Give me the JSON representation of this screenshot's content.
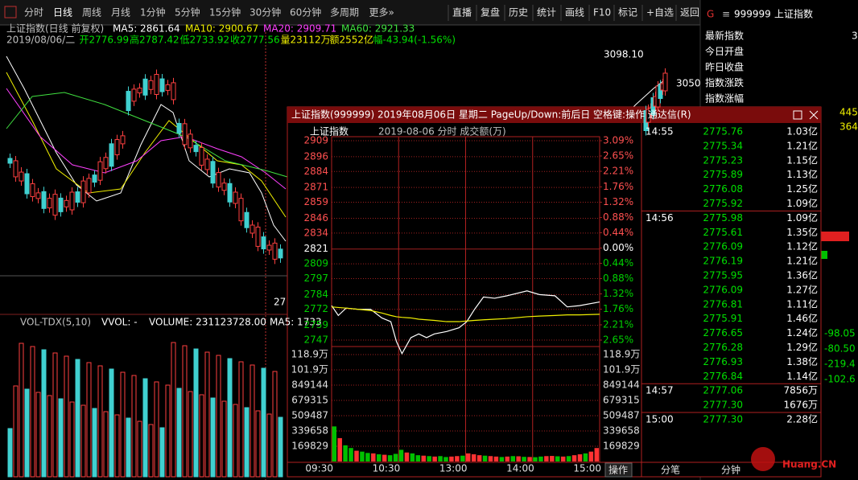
{
  "toolbar": {
    "left": [
      "分时",
      "日线",
      "周线",
      "月线",
      "1分钟",
      "5分钟",
      "15分钟",
      "30分钟",
      "60分钟",
      "多周期",
      "更多»"
    ],
    "right": [
      "直播",
      "复盘",
      "历史",
      "统计",
      "画线",
      "F10",
      "标记",
      "+自选",
      "返回"
    ]
  },
  "header": {
    "mark": "G",
    "menu": "≡",
    "code": "999999",
    "name": "上证指数"
  },
  "quote_panel": {
    "labels": [
      "最新指数",
      "今日开盘",
      "昨日收盘",
      "指数涨跌",
      "指数涨幅"
    ],
    "cut_values": [
      "3",
      "445",
      "364",
      "-98.05",
      "-80.50",
      "-219.4",
      "-102.6"
    ]
  },
  "daily": {
    "title": "上证指数(日线 前复权)",
    "ma": [
      {
        "text": "MA5: 2861.64",
        "color": "#ffffff"
      },
      {
        "text": "MA10: 2900.67",
        "color": "#f0f000"
      },
      {
        "text": "MA20: 2909.71",
        "color": "#ff40ff"
      },
      {
        "text": "MA60: 2921.33",
        "color": "#40e040"
      }
    ],
    "info": [
      {
        "text": "2019/08/06/二",
        "color": "#c0c0c0"
      },
      {
        "text": "开2776.99",
        "color": "#00e000"
      },
      {
        "text": "高2787.42",
        "color": "#00e000"
      },
      {
        "text": "低2733.92",
        "color": "#00e000"
      },
      {
        "text": "收2777.56",
        "color": "#00e000"
      },
      {
        "text": "量23112万",
        "color": "#f0f000"
      },
      {
        "text": "额2552亿",
        "color": "#f0f000"
      },
      {
        "text": "幅-43.94(-1.56%)",
        "color": "#00e000"
      }
    ],
    "labels": [
      "3098.10",
      "3050",
      "27"
    ]
  },
  "volume_header": [
    "VOL-TDX(5,10)",
    "VVOL: -",
    "VOLUME: 231123728.00",
    "MA5: 1733"
  ],
  "popup": {
    "title": "上证指数(999999) 2019年08月06日 星期二 PageUp/Down:前后日 空格键:操作 通达信(R)",
    "name": "上证指数",
    "subtitle": "2019-08-06 分时 成交额(万)",
    "tabs": [
      "操作",
      "分笔",
      "分钟"
    ],
    "trades": [
      [
        "14:55",
        "2775.76",
        "1.03亿"
      ],
      [
        null,
        "2775.34",
        "1.21亿"
      ],
      [
        null,
        "2775.23",
        "1.15亿"
      ],
      [
        null,
        "2775.89",
        "1.13亿"
      ],
      [
        null,
        "2776.08",
        "1.25亿"
      ],
      [
        null,
        "2775.92",
        "1.09亿"
      ],
      [
        "14:56",
        "2775.98",
        "1.09亿"
      ],
      [
        null,
        "2775.61",
        "1.35亿"
      ],
      [
        null,
        "2776.09",
        "1.12亿"
      ],
      [
        null,
        "2776.19",
        "1.21亿"
      ],
      [
        null,
        "2775.95",
        "1.36亿"
      ],
      [
        null,
        "2776.09",
        "1.27亿"
      ],
      [
        null,
        "2776.81",
        "1.11亿"
      ],
      [
        null,
        "2775.91",
        "1.46亿"
      ],
      [
        null,
        "2776.65",
        "1.24亿"
      ],
      [
        null,
        "2776.28",
        "1.29亿"
      ],
      [
        null,
        "2776.93",
        "1.38亿"
      ],
      [
        null,
        "2776.84",
        "1.14亿"
      ],
      [
        "14:57",
        "2777.06",
        "7856万"
      ],
      [
        null,
        "2777.30",
        "1676万"
      ],
      [
        "15:00",
        "2777.30",
        "2.28亿"
      ]
    ]
  },
  "watermark": "Huang.CN",
  "chart_data": {
    "type": "intraday",
    "xlim": [
      0,
      240
    ],
    "xticks": [
      {
        "value": 0,
        "label": "09:30"
      },
      {
        "value": 60,
        "label": "10:30"
      },
      {
        "value": 120,
        "label": "13:00"
      },
      {
        "value": 180,
        "label": "14:00"
      },
      {
        "value": 240,
        "label": "15:00"
      }
    ],
    "price": {
      "x": [
        0,
        6,
        13,
        24,
        35,
        45,
        53,
        58,
        63,
        71,
        78,
        85,
        92,
        103,
        114,
        121,
        128,
        136,
        146,
        157,
        175,
        186,
        200,
        211,
        222,
        240
      ],
      "series": [
        {
          "color": "#ffffff",
          "values": [
            2775,
            2767,
            2773,
            2772,
            2772,
            2765,
            2762,
            2746,
            2736,
            2749,
            2752,
            2749,
            2752,
            2754,
            2757,
            2762,
            2772,
            2782,
            2781,
            2783,
            2787,
            2784,
            2783,
            2774,
            2775,
            2778
          ]
        },
        {
          "color": "#f0f000",
          "values": [
            2774,
            2773.5,
            2773,
            2772,
            2771,
            2769,
            2767,
            2766,
            2765.5,
            2765,
            2764,
            2763.5,
            2763,
            2762,
            2762,
            2762.5,
            2763,
            2763.5,
            2764,
            2764.5,
            2766,
            2766.5,
            2767,
            2767.5,
            2767.5,
            2768
          ]
        }
      ],
      "ylim": [
        2747,
        2909
      ],
      "yticks": [
        2909,
        2896,
        2884,
        2871,
        2859,
        2846,
        2834,
        2821,
        2809,
        2797,
        2784,
        2772,
        2759,
        2747
      ],
      "y2lim": [
        -2.65,
        3.09
      ],
      "y2ticks": [
        {
          "value": 3.09,
          "label": "3.09%"
        },
        {
          "value": 2.65,
          "label": "2.65%"
        },
        {
          "value": 2.21,
          "label": "2.21%"
        },
        {
          "value": 1.76,
          "label": "1.76%"
        },
        {
          "value": 1.32,
          "label": "1.32%"
        },
        {
          "value": 0.88,
          "label": "0.88%"
        },
        {
          "value": 0.44,
          "label": "0.44%"
        },
        {
          "value": 0,
          "label": "0.00%"
        },
        {
          "value": -0.44,
          "label": "0.44%"
        },
        {
          "value": -0.88,
          "label": "0.88%"
        },
        {
          "value": -1.32,
          "label": "1.32%"
        },
        {
          "value": -1.76,
          "label": "1.76%"
        },
        {
          "value": -2.21,
          "label": "2.21%"
        },
        {
          "value": -2.65,
          "label": "2.65%"
        }
      ]
    },
    "volume": {
      "x": [
        0,
        5,
        10,
        15,
        20,
        25,
        30,
        35,
        40,
        45,
        50,
        55,
        60,
        65,
        70,
        75,
        80,
        85,
        90,
        95,
        100,
        105,
        110,
        115,
        120,
        125,
        130,
        135,
        140,
        145,
        150,
        155,
        160,
        165,
        170,
        175,
        180,
        185,
        190,
        195,
        200,
        205,
        210,
        215,
        220,
        225,
        230,
        235
      ],
      "values": [
        390000,
        260000,
        180000,
        150000,
        120000,
        110000,
        95000,
        90000,
        80000,
        75000,
        70000,
        85000,
        130000,
        100000,
        90000,
        70000,
        65000,
        60000,
        55000,
        60000,
        50000,
        55000,
        60000,
        65000,
        90000,
        80000,
        70000,
        65000,
        60000,
        55000,
        50000,
        55000,
        60000,
        58000,
        52000,
        50000,
        48000,
        55000,
        60000,
        62000,
        58000,
        55000,
        60000,
        70000,
        80000,
        90000,
        110000,
        150000
      ],
      "colors": [
        "#00c000",
        "#ff3232",
        "#00c000",
        "#00c000",
        "#ff3232",
        "#00c000",
        "#00c000",
        "#ff3232",
        "#00c000",
        "#ff3232",
        "#00c000",
        "#00c000",
        "#00c000",
        "#ff3232",
        "#00c000",
        "#00c000",
        "#ff3232",
        "#00c000",
        "#ff3232",
        "#00c000",
        "#00c000",
        "#ff3232",
        "#ff3232",
        "#00c000",
        "#ff3232",
        "#ff3232",
        "#ff3232",
        "#00c000",
        "#ff3232",
        "#ff3232",
        "#00c000",
        "#ff3232",
        "#00c000",
        "#ff3232",
        "#00c000",
        "#ff3232",
        "#00c000",
        "#00c000",
        "#ff3232",
        "#ff3232",
        "#00c000",
        "#ff3232",
        "#00c000",
        "#ff3232",
        "#ff3232",
        "#00c000",
        "#ff3232",
        "#ff3232"
      ],
      "ylim": [
        0,
        1188802
      ],
      "yticks": [
        {
          "value": 1188802,
          "label": "118.9万"
        },
        {
          "value": 1018973,
          "label": "101.9万"
        },
        849144,
        679315,
        509487,
        339658,
        169829
      ]
    }
  }
}
